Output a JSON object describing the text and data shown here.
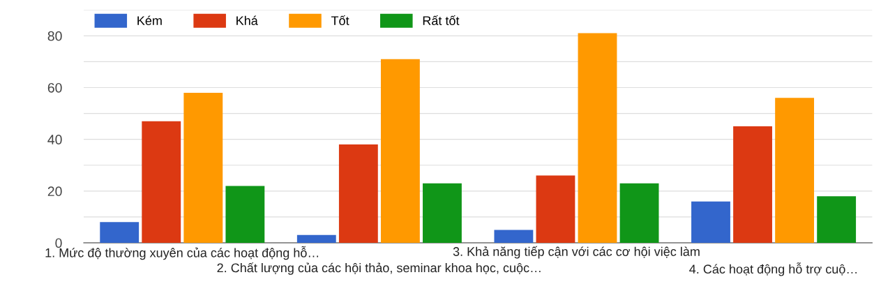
{
  "chart_data": {
    "type": "bar",
    "categories": [
      "1. Mức độ thường xuyên của các hoạt động hỗ…",
      "2. Chất lượng của các hội thảo, seminar khoa học, cuộc…",
      "3. Khả năng tiếp cận với các cơ hội việc làm",
      "4. Các hoạt động hỗ trợ cuộ…"
    ],
    "series": [
      {
        "name": "Kém",
        "color": "#3366cc",
        "values": [
          8,
          3,
          5,
          16
        ]
      },
      {
        "name": "Khá",
        "color": "#dc3912",
        "values": [
          47,
          38,
          26,
          45
        ]
      },
      {
        "name": "Tốt",
        "color": "#ff9900",
        "values": [
          58,
          71,
          81,
          56
        ]
      },
      {
        "name": "Rất tốt",
        "color": "#109618",
        "values": [
          22,
          23,
          23,
          18
        ]
      }
    ],
    "ylim": [
      0,
      90
    ],
    "yticks": [
      0,
      {
        "value": 10,
        "label": null
      },
      20,
      {
        "value": 30,
        "label": null
      },
      40,
      {
        "value": 50,
        "label": null
      },
      60,
      {
        "value": 70,
        "label": null
      },
      80,
      {
        "value": 90,
        "label": null
      }
    ],
    "grid": "y",
    "legend": "top left"
  }
}
